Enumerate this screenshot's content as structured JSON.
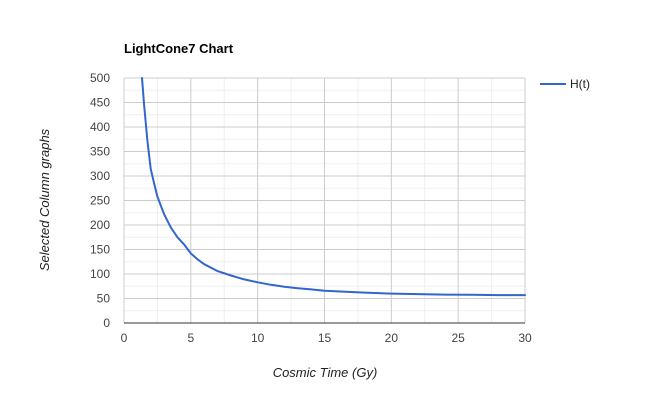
{
  "chart_data": {
    "type": "line",
    "title": "LightCone7 Chart",
    "xlabel": "Cosmic Time (Gy)",
    "ylabel": "Selected Column graphs",
    "xlim": [
      0,
      30
    ],
    "ylim": [
      0,
      500
    ],
    "x_ticks": [
      "0",
      "5",
      "10",
      "15",
      "20",
      "25",
      "30"
    ],
    "y_ticks": [
      "0",
      "50",
      "100",
      "150",
      "200",
      "250",
      "300",
      "350",
      "400",
      "450",
      "500"
    ],
    "grid": true,
    "legend_position": "right",
    "series": [
      {
        "name": "H(t)",
        "color": "#3366cc",
        "x": [
          1.35,
          1.5,
          1.75,
          2.0,
          2.25,
          2.5,
          3.0,
          3.5,
          4.0,
          4.5,
          5.0,
          5.5,
          6.0,
          7.0,
          8.0,
          9.0,
          10.0,
          11.0,
          12.0,
          13.0,
          14.0,
          15.0,
          16.0,
          18.0,
          20.0,
          22.0,
          24.0,
          26.0,
          28.0,
          30.0
        ],
        "y": [
          500,
          445,
          372,
          315,
          285,
          258,
          222,
          195,
          175,
          160,
          142,
          130,
          120,
          106,
          97,
          89,
          83,
          78,
          74,
          71,
          68.5,
          66,
          64.5,
          62,
          60,
          59,
          58,
          57.5,
          57,
          57
        ]
      }
    ]
  }
}
